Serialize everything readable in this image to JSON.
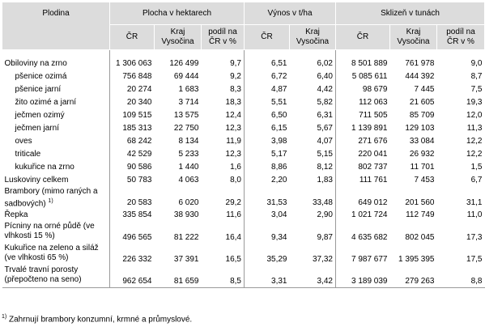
{
  "headers": {
    "crop": "Plodina",
    "groups": [
      "Plocha v hektarech",
      "Výnos v t/ha",
      "Sklizeň v tunách"
    ],
    "sub": [
      [
        "ČR",
        "Kraj Vysočina",
        "podíl na ČR v %"
      ],
      [
        "ČR",
        "Kraj Vysočina"
      ],
      [
        "ČR",
        "Kraj Vysočina",
        "podíl na ČR v %"
      ]
    ]
  },
  "rows": [
    {
      "name": "Obiloviny na zrno",
      "values": [
        "1 306 063",
        "126 499",
        "9,7",
        "6,51",
        "6,02",
        "8 501 889",
        "761 978",
        "9,0"
      ]
    },
    {
      "name": "pšenice ozimá",
      "values": [
        "756 848",
        "69 444",
        "9,2",
        "6,72",
        "6,40",
        "5 085 611",
        "444 392",
        "8,7"
      ]
    },
    {
      "name": "pšenice jarní",
      "values": [
        "20 274",
        "1 683",
        "8,3",
        "4,87",
        "4,42",
        "98 679",
        "7 445",
        "7,5"
      ]
    },
    {
      "name": "žito ozimé a jarní",
      "values": [
        "20 340",
        "3 714",
        "18,3",
        "5,51",
        "5,82",
        "112 063",
        "21 605",
        "19,3"
      ]
    },
    {
      "name": "ječmen ozimý",
      "values": [
        "109 515",
        "13 575",
        "12,4",
        "6,50",
        "6,31",
        "711 505",
        "85 709",
        "12,0"
      ]
    },
    {
      "name": "ječmen jarní",
      "values": [
        "185 313",
        "22 750",
        "12,3",
        "6,15",
        "5,67",
        "1 139 891",
        "129 103",
        "11,3"
      ]
    },
    {
      "name": "oves",
      "values": [
        "68 242",
        "8 134",
        "11,9",
        "3,98",
        "4,07",
        "271 676",
        "33 084",
        "12,2"
      ]
    },
    {
      "name": "triticale",
      "values": [
        "42 529",
        "5 233",
        "12,3",
        "5,17",
        "5,15",
        "220 041",
        "26 932",
        "12,2"
      ]
    },
    {
      "name": "kukuřice na zrno",
      "values": [
        "90 586",
        "1 440",
        "1,6",
        "8,86",
        "8,12",
        "802 737",
        "11 701",
        "1,5"
      ]
    },
    {
      "name": "Luskoviny celkem",
      "values": [
        "50 783",
        "4 063",
        "8,0",
        "2,20",
        "1,83",
        "111 761",
        "7 453",
        "6,7"
      ]
    },
    {
      "name": "Brambory (mimo raných a sadbových)",
      "fn": "1)",
      "values": [
        "20 583",
        "6 020",
        "29,2",
        "31,53",
        "33,48",
        "649 012",
        "201 560",
        "31,1"
      ]
    },
    {
      "name": "Řepka",
      "values": [
        "335 854",
        "38 930",
        "11,6",
        "3,04",
        "2,90",
        "1 021 724",
        "112 749",
        "11,0"
      ]
    },
    {
      "name": "Pícniny na orné půdě (ve vlhkosti 15 %)",
      "values": [
        "496 565",
        "81 222",
        "16,4",
        "9,34",
        "9,87",
        "4 635 682",
        "802 045",
        "17,3"
      ]
    },
    {
      "name": "Kukuřice na zeleno a siláž (ve vlhkosti 65 %)",
      "values": [
        "226 332",
        "37 391",
        "16,5",
        "35,29",
        "37,32",
        "7 987 677",
        "1 395 395",
        "17,5"
      ]
    },
    {
      "name": "Trvalé travní porosty (přepočteno na seno)",
      "values": [
        "962 654",
        "81 659",
        "8,5",
        "3,31",
        "3,42",
        "3 189 039",
        "279 263",
        "8,8"
      ]
    }
  ],
  "footnote": {
    "mark": "1)",
    "text": "Zahrnují brambory konzumní, krmné a průmyslové."
  }
}
